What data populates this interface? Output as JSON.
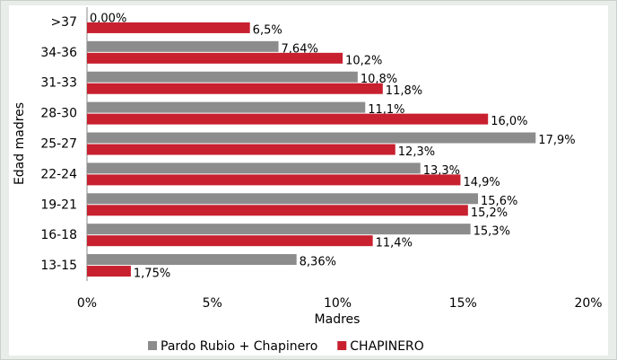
{
  "chart_data": {
    "type": "barh",
    "categories": [
      ">37",
      "34-36",
      "31-33",
      "28-30",
      "25-27",
      "22-24",
      "19-21",
      "16-18",
      "13-15"
    ],
    "series": [
      {
        "name": "Pardo Rubio + Chapinero",
        "color": "#8c8c8c",
        "values": [
          0.0,
          7.64,
          10.8,
          11.1,
          17.9,
          13.3,
          15.6,
          15.3,
          8.36
        ],
        "value_labels": [
          "0,00%",
          "7,64%",
          "10,8%",
          "11,1%",
          "17,9%",
          "13,3%",
          "15,6%",
          "15,3%",
          "8,36%"
        ]
      },
      {
        "name": "CHAPINERO",
        "color": "#c8202f",
        "values": [
          6.5,
          10.2,
          11.8,
          16.0,
          12.3,
          14.9,
          15.2,
          11.4,
          1.75
        ],
        "value_labels": [
          "6,5%",
          "10,2%",
          "11,8%",
          "16,0%",
          "12,3%",
          "14,9%",
          "15,2%",
          "11,4%",
          "1,75%"
        ]
      }
    ],
    "xlim": [
      0,
      20
    ],
    "xticks": [
      {
        "value": 0,
        "label": "0%"
      },
      {
        "value": 5,
        "label": "5%"
      },
      {
        "value": 10,
        "label": "10%"
      },
      {
        "value": 15,
        "label": "15%"
      },
      {
        "value": 20,
        "label": "20%"
      }
    ],
    "xlabel": "Madres",
    "ylabel": "Edad madres",
    "grid": false,
    "legend": "bottom"
  }
}
